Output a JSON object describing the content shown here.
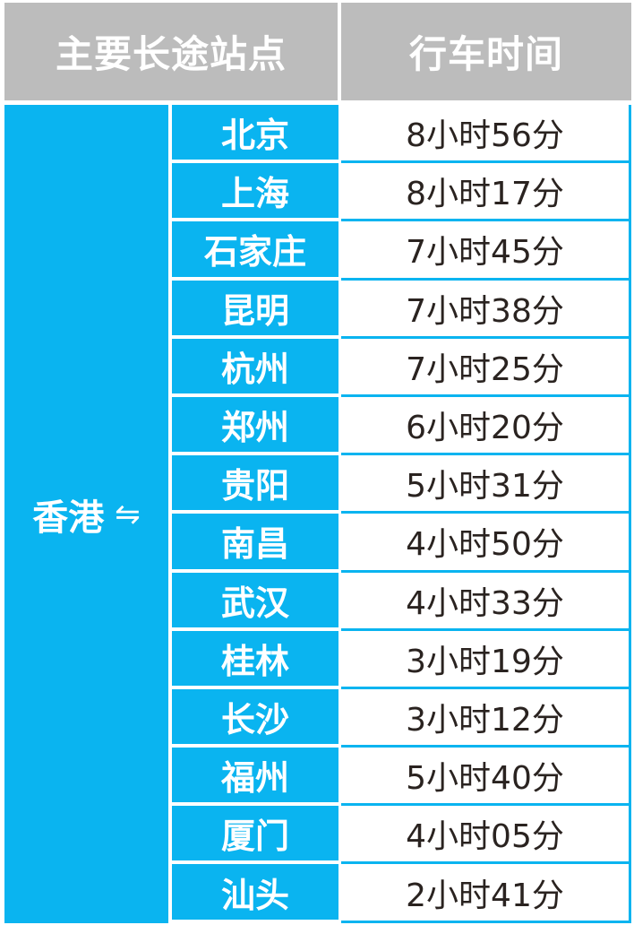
{
  "header": {
    "col1": "主要长途站点",
    "col2": "行车时间"
  },
  "origin": {
    "label": "香港",
    "arrow_icon": "bidirectional-arrows-icon",
    "arrow_glyph": "⇋"
  },
  "colors": {
    "blue": "#0ab4f0",
    "header_gray": "#bcbcbc"
  },
  "rows": [
    {
      "station": "北京",
      "time": "8小时56分"
    },
    {
      "station": "上海",
      "time": "8小时17分"
    },
    {
      "station": "石家庄",
      "time": "7小时45分"
    },
    {
      "station": "昆明",
      "time": "7小时38分"
    },
    {
      "station": "杭州",
      "time": "7小时25分"
    },
    {
      "station": "郑州",
      "time": "6小时20分"
    },
    {
      "station": "贵阳",
      "time": "5小时31分"
    },
    {
      "station": "南昌",
      "time": "4小时50分"
    },
    {
      "station": "武汉",
      "time": "4小时33分"
    },
    {
      "station": "桂林",
      "time": "3小时19分"
    },
    {
      "station": "长沙",
      "time": "3小时12分"
    },
    {
      "station": "福州",
      "time": "5小时40分"
    },
    {
      "station": "厦门",
      "time": "4小时05分"
    },
    {
      "station": "汕头",
      "time": "2小时41分"
    }
  ]
}
